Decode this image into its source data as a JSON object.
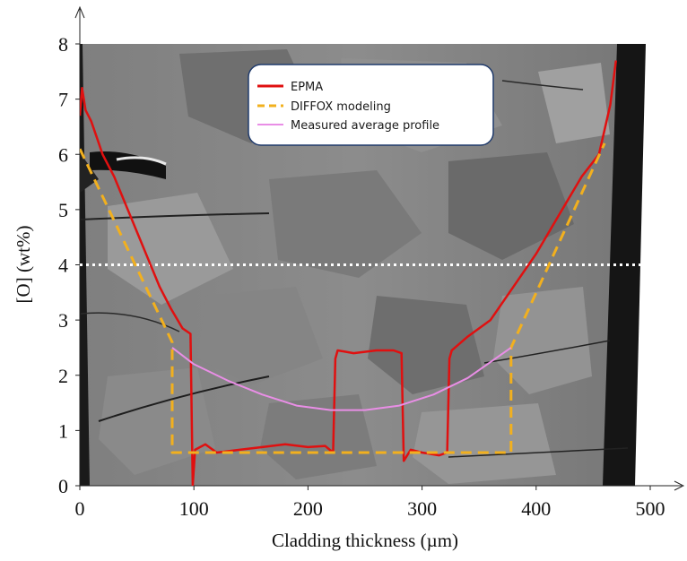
{
  "chart_data": {
    "type": "line",
    "xlabel": "Cladding thickness (µm)",
    "ylabel": "[O] (wt%)",
    "xlim": [
      0,
      500
    ],
    "ylim": [
      0,
      8
    ],
    "x_ticks": [
      "0",
      "100",
      "200",
      "300",
      "400",
      "500"
    ],
    "y_ticks": [
      "0",
      "1",
      "2",
      "3",
      "4",
      "5",
      "6",
      "7",
      "8"
    ],
    "legend_position": "top-center",
    "background": "grayscale micrograph of cladding cross-section",
    "reference_line": {
      "y": 4,
      "style": "white dotted"
    },
    "series": [
      {
        "name": "EPMA",
        "color": "#e01010",
        "style": "solid",
        "x": [
          0,
          2,
          5,
          10,
          15,
          20,
          30,
          40,
          50,
          60,
          70,
          80,
          90,
          97,
          99,
          101,
          110,
          120,
          140,
          160,
          180,
          200,
          215,
          222,
          224,
          226,
          240,
          260,
          275,
          282,
          284,
          290,
          300,
          315,
          322,
          324,
          326,
          340,
          360,
          380,
          400,
          420,
          440,
          455,
          465,
          470
        ],
        "y": [
          6.7,
          7.2,
          6.8,
          6.6,
          6.3,
          6.0,
          5.6,
          5.1,
          4.6,
          4.1,
          3.6,
          3.2,
          2.85,
          2.75,
          0.0,
          0.65,
          0.75,
          0.6,
          0.65,
          0.7,
          0.75,
          0.7,
          0.72,
          0.6,
          2.3,
          2.45,
          2.4,
          2.45,
          2.45,
          2.4,
          0.45,
          0.65,
          0.6,
          0.55,
          0.6,
          2.3,
          2.45,
          2.7,
          3.0,
          3.6,
          4.2,
          4.9,
          5.6,
          6.0,
          6.9,
          7.7
        ]
      },
      {
        "name": "DIFFOX modeling",
        "color": "#f2b01e",
        "style": "dashed",
        "x": [
          0,
          81,
          81,
          378,
          378,
          460
        ],
        "y": [
          6.1,
          2.6,
          0.6,
          0.6,
          2.5,
          6.2
        ]
      },
      {
        "name": "Measured average profile",
        "color": "#e98ee6",
        "style": "solid",
        "x": [
          81,
          100,
          130,
          160,
          190,
          220,
          250,
          280,
          310,
          340,
          378
        ],
        "y": [
          2.5,
          2.2,
          1.9,
          1.65,
          1.45,
          1.37,
          1.37,
          1.45,
          1.65,
          1.95,
          2.5
        ]
      }
    ]
  }
}
